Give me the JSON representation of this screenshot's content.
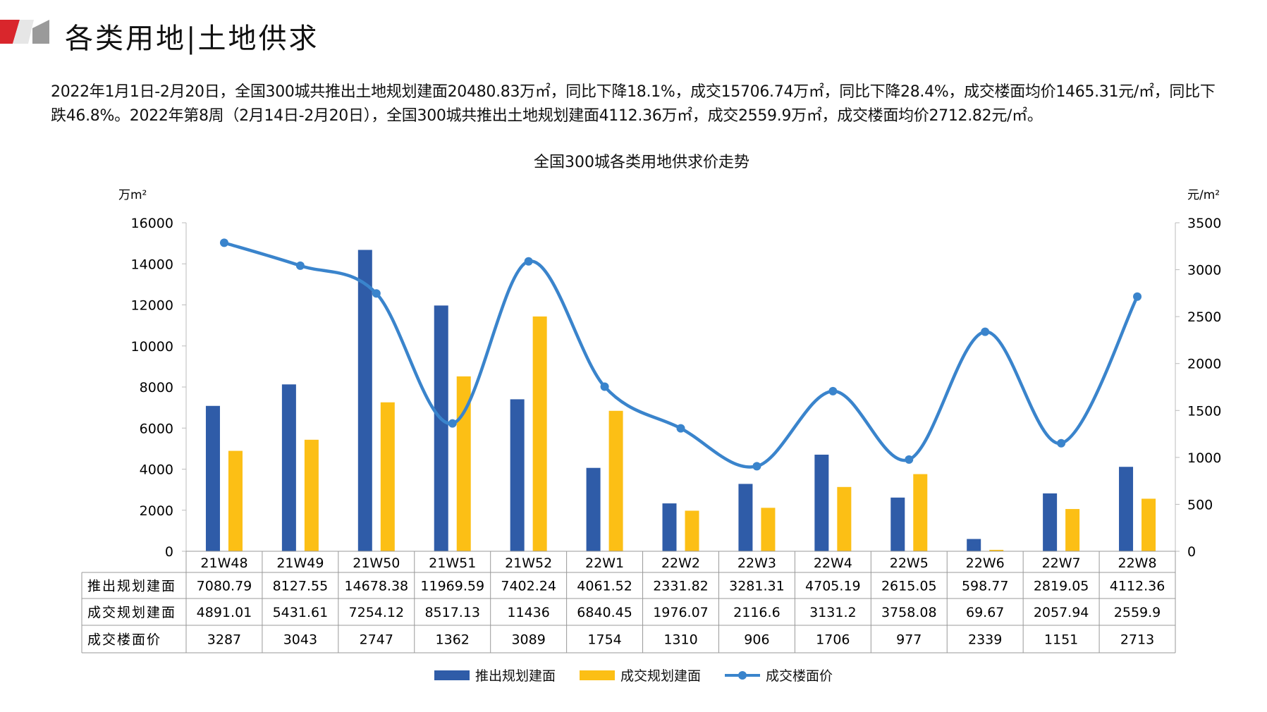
{
  "header": {
    "title": "各类用地|土地供求"
  },
  "summary": "2022年1月1日-2月20日，全国300城共推出土地规划建面20480.83万㎡，同比下降18.1%，成交15706.74万㎡，同比下降28.4%，成交楼面均价1465.31元/㎡，同比下跌46.8%。2022年第8周（2月14日-2月20日），全国300城共推出土地规划建面4112.36万㎡，成交2559.9万㎡，成交楼面均价2712.82元/㎡。",
  "chart_data": {
    "type": "bar",
    "title": "全国300城各类用地供求价走势",
    "ylabel": "万m²",
    "y2label": "元/m²",
    "ylim": [
      0,
      16000
    ],
    "y2lim": [
      0,
      3500
    ],
    "yticks": [
      0,
      2000,
      4000,
      6000,
      8000,
      10000,
      12000,
      14000,
      16000
    ],
    "y2ticks": [
      0,
      500,
      1000,
      1500,
      2000,
      2500,
      3000,
      3500
    ],
    "grid": false,
    "legend_position": "bottom",
    "categories": [
      "21W48",
      "21W49",
      "21W50",
      "21W51",
      "21W52",
      "22W1",
      "22W2",
      "22W3",
      "22W4",
      "22W5",
      "22W6",
      "22W7",
      "22W8"
    ],
    "series": [
      {
        "name": "推出规划建面",
        "type": "bar",
        "axis": "left",
        "color": "#2f5ca8",
        "values": [
          "7080.79",
          "8127.55",
          "14678.38",
          "11969.59",
          "7402.24",
          "4061.52",
          "2331.82",
          "3281.31",
          "4705.19",
          "2615.05",
          "598.77",
          "2819.05",
          "4112.36"
        ]
      },
      {
        "name": "成交规划建面",
        "type": "bar",
        "axis": "left",
        "color": "#fcbf15",
        "values": [
          "4891.01",
          "5431.61",
          "7254.12",
          "8517.13",
          "11436",
          "6840.45",
          "1976.07",
          "2116.6",
          "3131.2",
          "3758.08",
          "69.67",
          "2057.94",
          "2559.9"
        ]
      },
      {
        "name": "成交楼面价",
        "type": "line",
        "axis": "right",
        "color": "#3a84cc",
        "values": [
          "3287",
          "3043",
          "2747",
          "1362",
          "3089",
          "1754",
          "1310",
          "906",
          "1706",
          "977",
          "2339",
          "1151",
          "2713"
        ]
      }
    ]
  }
}
